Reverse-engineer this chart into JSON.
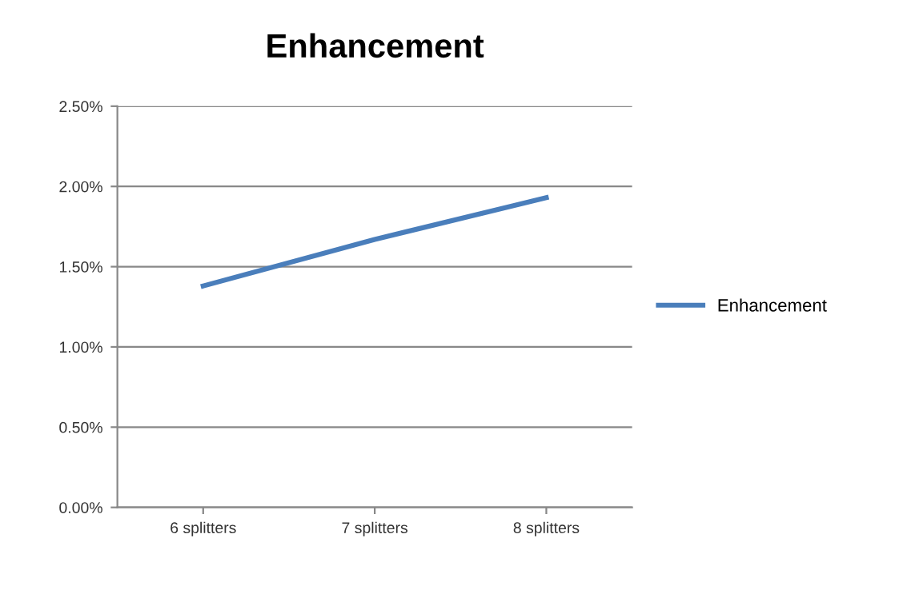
{
  "chart_data": {
    "type": "line",
    "title": "Enhancement",
    "categories": [
      "6 splitters",
      "7 splitters",
      "8 splitters"
    ],
    "series": [
      {
        "name": "Enhancement",
        "color": "#4a7ebb",
        "values": [
          1.38,
          1.67,
          1.93
        ]
      }
    ],
    "ylim": [
      0,
      2.5
    ],
    "yticks": [
      {
        "value": 0,
        "label": "0.00%"
      },
      {
        "value": 0.5,
        "label": "0.50%"
      },
      {
        "value": 1,
        "label": "1.00%"
      },
      {
        "value": 1.5,
        "label": "1.50%"
      },
      {
        "value": 2,
        "label": "2.00%"
      },
      {
        "value": 2.5,
        "label": "2.50%"
      }
    ],
    "grid": "y",
    "legend": "right",
    "marker": "none",
    "line_style": "solid"
  }
}
